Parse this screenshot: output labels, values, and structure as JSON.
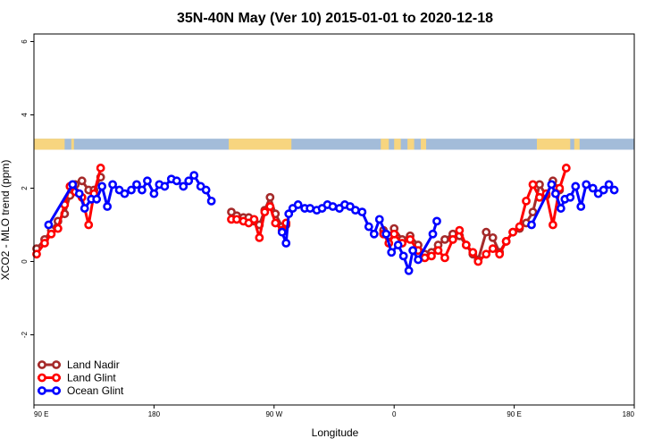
{
  "chart_data": {
    "type": "line",
    "title": "35N-40N May (Ver 10)   2015-01-01 to 2020-12-18",
    "xlabel": "Longitude",
    "ylabel": "XCO2 - MLO trend (ppm)",
    "x_ticks": [
      {
        "v": 90,
        "label": "90 E"
      },
      {
        "v": 180,
        "label": "180"
      },
      {
        "v": 270,
        "label": "90 W"
      },
      {
        "v": 360,
        "label": "0"
      },
      {
        "v": 450,
        "label": "90 E"
      },
      {
        "v": 540,
        "label": "180"
      }
    ],
    "y_ticks": [
      -2,
      0,
      2,
      4,
      6
    ],
    "xlim": [
      90,
      540
    ],
    "ylim": [
      -4,
      6
    ],
    "grid": false,
    "legend_position": "bottom-left",
    "land_ocean_strip": {
      "y_range": [
        3.05,
        3.35
      ],
      "ocean_color": "#a3bcd9",
      "land_color": "#f7d57f",
      "land_ranges": [
        [
          90,
          113
        ],
        [
          118,
          120
        ],
        [
          236,
          283
        ],
        [
          350,
          356
        ],
        [
          360,
          365
        ],
        [
          370,
          375
        ],
        [
          380,
          384
        ],
        [
          467,
          492
        ],
        [
          495,
          499
        ]
      ]
    },
    "series": [
      {
        "name": "Land Nadir",
        "color": "#a52a2a",
        "segments": [
          [
            [
              92,
              0.35
            ],
            [
              98,
              0.6
            ],
            [
              103,
              0.85
            ],
            [
              108,
              1.1
            ],
            [
              113,
              1.3
            ],
            [
              117,
              1.8
            ],
            [
              121,
              2.1
            ],
            [
              126,
              2.2
            ],
            [
              131,
              1.95
            ],
            [
              135,
              1.95
            ],
            [
              140,
              2.3
            ]
          ],
          [
            [
              238,
              1.35
            ],
            [
              242,
              1.25
            ],
            [
              247,
              1.2
            ],
            [
              251,
              1.2
            ],
            [
              255,
              1.1
            ],
            [
              259,
              1.0
            ],
            [
              263,
              1.4
            ],
            [
              267,
              1.75
            ],
            [
              271,
              1.3
            ],
            [
              276,
              0.95
            ],
            [
              279,
              1.0
            ]
          ],
          [
            [
              352,
              0.85
            ],
            [
              356,
              0.7
            ],
            [
              360,
              0.9
            ],
            [
              366,
              0.6
            ],
            [
              372,
              0.7
            ],
            [
              378,
              0.45
            ],
            [
              383,
              0.2
            ],
            [
              388,
              0.25
            ],
            [
              393,
              0.45
            ],
            [
              398,
              0.6
            ],
            [
              404,
              0.75
            ],
            [
              409,
              0.7
            ],
            [
              414,
              0.45
            ],
            [
              419,
              0.2
            ],
            [
              423,
              0.05
            ],
            [
              429,
              0.8
            ],
            [
              434,
              0.65
            ],
            [
              439,
              0.25
            ],
            [
              444,
              0.55
            ],
            [
              449,
              0.8
            ],
            [
              454,
              0.9
            ],
            [
              459,
              1.05
            ],
            [
              464,
              1.35
            ],
            [
              469,
              2.1
            ],
            [
              474,
              1.8
            ],
            [
              479,
              2.2
            ],
            [
              484,
              1.95
            ]
          ]
        ]
      },
      {
        "name": "Land Glint",
        "color": "#ff0000",
        "segments": [
          [
            [
              92,
              0.2
            ],
            [
              98,
              0.5
            ],
            [
              103,
              0.75
            ],
            [
              108,
              0.9
            ],
            [
              113,
              1.55
            ],
            [
              117,
              2.05
            ],
            [
              121,
              1.9
            ],
            [
              126,
              1.75
            ],
            [
              131,
              1.0
            ],
            [
              135,
              1.85
            ],
            [
              140,
              2.55
            ]
          ],
          [
            [
              238,
              1.15
            ],
            [
              242,
              1.15
            ],
            [
              247,
              1.1
            ],
            [
              251,
              1.05
            ],
            [
              255,
              1.15
            ],
            [
              259,
              0.65
            ],
            [
              263,
              1.35
            ],
            [
              267,
              1.5
            ],
            [
              271,
              1.05
            ],
            [
              276,
              0.85
            ],
            [
              279,
              1.05
            ]
          ],
          [
            [
              352,
              0.75
            ],
            [
              356,
              0.5
            ],
            [
              360,
              0.75
            ],
            [
              366,
              0.5
            ],
            [
              372,
              0.6
            ],
            [
              378,
              0.3
            ],
            [
              383,
              0.1
            ],
            [
              388,
              0.15
            ],
            [
              393,
              0.3
            ],
            [
              398,
              0.1
            ],
            [
              404,
              0.6
            ],
            [
              409,
              0.85
            ],
            [
              414,
              0.45
            ],
            [
              419,
              0.25
            ],
            [
              423,
              0.0
            ],
            [
              429,
              0.2
            ],
            [
              434,
              0.35
            ],
            [
              439,
              0.2
            ],
            [
              444,
              0.55
            ],
            [
              449,
              0.8
            ],
            [
              454,
              0.95
            ],
            [
              459,
              1.65
            ],
            [
              464,
              2.1
            ],
            [
              469,
              1.75
            ],
            [
              474,
              1.85
            ],
            [
              479,
              1.0
            ],
            [
              484,
              2.0
            ],
            [
              489,
              2.55
            ]
          ]
        ]
      },
      {
        "name": "Ocean Glint",
        "color": "#0000ff",
        "segments": [
          [
            [
              101,
              1.0
            ],
            [
              119,
              2.1
            ],
            [
              124,
              1.85
            ],
            [
              128,
              1.45
            ],
            [
              133,
              1.7
            ],
            [
              137,
              1.7
            ],
            [
              141,
              2.05
            ],
            [
              145,
              1.5
            ],
            [
              149,
              2.1
            ],
            [
              154,
              1.95
            ],
            [
              158,
              1.85
            ],
            [
              163,
              1.95
            ],
            [
              167,
              2.1
            ],
            [
              171,
              1.95
            ],
            [
              175,
              2.2
            ],
            [
              180,
              1.85
            ],
            [
              184,
              2.1
            ],
            [
              188,
              2.05
            ],
            [
              193,
              2.25
            ],
            [
              197,
              2.2
            ],
            [
              202,
              2.05
            ],
            [
              206,
              2.2
            ],
            [
              210,
              2.35
            ],
            [
              215,
              2.05
            ],
            [
              219,
              1.95
            ],
            [
              223,
              1.65
            ]
          ],
          [
            [
              276,
              0.8
            ],
            [
              279,
              0.5
            ],
            [
              281,
              1.3
            ],
            [
              284,
              1.45
            ],
            [
              288,
              1.55
            ],
            [
              293,
              1.45
            ],
            [
              297,
              1.45
            ],
            [
              302,
              1.4
            ],
            [
              306,
              1.45
            ],
            [
              310,
              1.55
            ],
            [
              314,
              1.5
            ],
            [
              319,
              1.45
            ],
            [
              323,
              1.55
            ],
            [
              327,
              1.5
            ],
            [
              331,
              1.4
            ],
            [
              336,
              1.35
            ],
            [
              341,
              0.95
            ],
            [
              345,
              0.75
            ],
            [
              349,
              1.15
            ],
            [
              354,
              0.75
            ],
            [
              358,
              0.25
            ],
            [
              363,
              0.45
            ],
            [
              367,
              0.15
            ],
            [
              371,
              -0.25
            ],
            [
              374,
              0.3
            ],
            [
              378,
              0.05
            ],
            [
              389,
              0.75
            ],
            [
              392,
              1.1
            ]
          ],
          [
            [
              463,
              1.0
            ],
            [
              478,
              2.1
            ],
            [
              481,
              1.85
            ],
            [
              485,
              1.45
            ],
            [
              488,
              1.7
            ],
            [
              492,
              1.75
            ],
            [
              496,
              2.05
            ],
            [
              500,
              1.5
            ],
            [
              504,
              2.1
            ],
            [
              509,
              2.0
            ],
            [
              513,
              1.85
            ],
            [
              517,
              1.95
            ],
            [
              521,
              2.1
            ],
            [
              525,
              1.95
            ]
          ]
        ]
      }
    ]
  }
}
